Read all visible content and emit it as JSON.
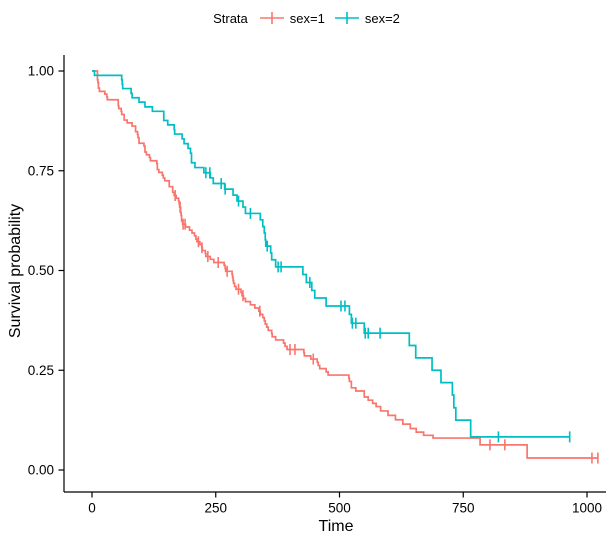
{
  "legend": {
    "title": "Strata",
    "items": [
      {
        "label": "sex=1",
        "color": "#F8766D"
      },
      {
        "label": "sex=2",
        "color": "#00BFC4"
      }
    ]
  },
  "axes": {
    "x": {
      "label": "Time",
      "tick_values": [
        0,
        250,
        500,
        750,
        1000
      ],
      "tick_labels": [
        "0",
        "250",
        "500",
        "750",
        "1000"
      ]
    },
    "y": {
      "label": "Survival probability",
      "tick_values": [
        0,
        0.25,
        0.5,
        0.75,
        1
      ],
      "tick_labels": [
        "0.00",
        "0.25",
        "0.50",
        "0.75",
        "1.00"
      ]
    }
  },
  "chart_data": {
    "type": "line",
    "subtype": "kaplan-meier-step",
    "title": "",
    "xlabel": "Time",
    "ylabel": "Survival probability",
    "xlim": [
      0,
      1040
    ],
    "ylim": [
      0,
      1
    ],
    "grid": false,
    "legend_position": "top",
    "series": [
      {
        "name": "sex=1",
        "color": "#F8766D",
        "end_time": 1022,
        "steps": [
          [
            0,
            1
          ],
          [
            11,
            0.978
          ],
          [
            12,
            0.971
          ],
          [
            13,
            0.957
          ],
          [
            15,
            0.949
          ],
          [
            26,
            0.942
          ],
          [
            30,
            0.935
          ],
          [
            31,
            0.928
          ],
          [
            53,
            0.913
          ],
          [
            54,
            0.906
          ],
          [
            59,
            0.899
          ],
          [
            60,
            0.891
          ],
          [
            65,
            0.877
          ],
          [
            71,
            0.87
          ],
          [
            81,
            0.862
          ],
          [
            88,
            0.848
          ],
          [
            92,
            0.841
          ],
          [
            93,
            0.833
          ],
          [
            95,
            0.819
          ],
          [
            105,
            0.812
          ],
          [
            107,
            0.797
          ],
          [
            110,
            0.79
          ],
          [
            116,
            0.783
          ],
          [
            118,
            0.775
          ],
          [
            131,
            0.768
          ],
          [
            132,
            0.753
          ],
          [
            135,
            0.746
          ],
          [
            142,
            0.739
          ],
          [
            144,
            0.732
          ],
          [
            147,
            0.725
          ],
          [
            156,
            0.71
          ],
          [
            163,
            0.696
          ],
          [
            166,
            0.688
          ],
          [
            170,
            0.681
          ],
          [
            175,
            0.674
          ],
          [
            176,
            0.667
          ],
          [
            177,
            0.659
          ],
          [
            179,
            0.645
          ],
          [
            180,
            0.638
          ],
          [
            181,
            0.624
          ],
          [
            183,
            0.616
          ],
          [
            189,
            0.609
          ],
          [
            197,
            0.601
          ],
          [
            202,
            0.594
          ],
          [
            207,
            0.587
          ],
          [
            210,
            0.579
          ],
          [
            212,
            0.572
          ],
          [
            218,
            0.565
          ],
          [
            222,
            0.557
          ],
          [
            223,
            0.55
          ],
          [
            229,
            0.542
          ],
          [
            230,
            0.535
          ],
          [
            239,
            0.528
          ],
          [
            246,
            0.52
          ],
          [
            267,
            0.513
          ],
          [
            269,
            0.505
          ],
          [
            270,
            0.498
          ],
          [
            283,
            0.49
          ],
          [
            284,
            0.483
          ],
          [
            285,
            0.475
          ],
          [
            286,
            0.468
          ],
          [
            288,
            0.46
          ],
          [
            291,
            0.453
          ],
          [
            301,
            0.445
          ],
          [
            303,
            0.437
          ],
          [
            306,
            0.43
          ],
          [
            310,
            0.422
          ],
          [
            320,
            0.414
          ],
          [
            329,
            0.406
          ],
          [
            337,
            0.398
          ],
          [
            340,
            0.39
          ],
          [
            345,
            0.382
          ],
          [
            348,
            0.374
          ],
          [
            350,
            0.366
          ],
          [
            353,
            0.358
          ],
          [
            356,
            0.35
          ],
          [
            363,
            0.342
          ],
          [
            364,
            0.334
          ],
          [
            371,
            0.326
          ],
          [
            387,
            0.318
          ],
          [
            390,
            0.31
          ],
          [
            394,
            0.302
          ],
          [
            428,
            0.294
          ],
          [
            429,
            0.286
          ],
          [
            442,
            0.278
          ],
          [
            455,
            0.27
          ],
          [
            457,
            0.262
          ],
          [
            460,
            0.254
          ],
          [
            473,
            0.246
          ],
          [
            477,
            0.238
          ],
          [
            519,
            0.23
          ],
          [
            520,
            0.222
          ],
          [
            524,
            0.206
          ],
          [
            533,
            0.198
          ],
          [
            550,
            0.183
          ],
          [
            558,
            0.175
          ],
          [
            567,
            0.167
          ],
          [
            574,
            0.159
          ],
          [
            583,
            0.148
          ],
          [
            598,
            0.137
          ],
          [
            613,
            0.126
          ],
          [
            628,
            0.115
          ],
          [
            643,
            0.104
          ],
          [
            655,
            0.095
          ],
          [
            670,
            0.087
          ],
          [
            689,
            0.08
          ],
          [
            784,
            0.063
          ],
          [
            879,
            0.03
          ]
        ],
        "censor_times": [
          168,
          178,
          184,
          188,
          215,
          222,
          234,
          255,
          273,
          296,
          305,
          339,
          400,
          410,
          447,
          804,
          834,
          1010,
          1022
        ]
      },
      {
        "name": "sex=2",
        "color": "#00BFC4",
        "end_time": 965,
        "steps": [
          [
            0,
            1
          ],
          [
            5,
            0.989
          ],
          [
            60,
            0.978
          ],
          [
            61,
            0.967
          ],
          [
            62,
            0.956
          ],
          [
            79,
            0.944
          ],
          [
            81,
            0.933
          ],
          [
            95,
            0.922
          ],
          [
            107,
            0.91
          ],
          [
            122,
            0.899
          ],
          [
            145,
            0.876
          ],
          [
            153,
            0.865
          ],
          [
            166,
            0.853
          ],
          [
            167,
            0.842
          ],
          [
            182,
            0.83
          ],
          [
            186,
            0.818
          ],
          [
            194,
            0.806
          ],
          [
            199,
            0.794
          ],
          [
            201,
            0.77
          ],
          [
            208,
            0.758
          ],
          [
            226,
            0.745
          ],
          [
            239,
            0.732
          ],
          [
            245,
            0.718
          ],
          [
            268,
            0.704
          ],
          [
            285,
            0.689
          ],
          [
            293,
            0.674
          ],
          [
            305,
            0.659
          ],
          [
            310,
            0.643
          ],
          [
            340,
            0.627
          ],
          [
            345,
            0.61
          ],
          [
            348,
            0.594
          ],
          [
            350,
            0.577
          ],
          [
            351,
            0.561
          ],
          [
            361,
            0.544
          ],
          [
            363,
            0.527
          ],
          [
            371,
            0.509
          ],
          [
            426,
            0.49
          ],
          [
            433,
            0.47
          ],
          [
            444,
            0.45
          ],
          [
            450,
            0.431
          ],
          [
            473,
            0.411
          ],
          [
            520,
            0.39
          ],
          [
            524,
            0.368
          ],
          [
            550,
            0.343
          ],
          [
            641,
            0.312
          ],
          [
            654,
            0.281
          ],
          [
            687,
            0.25
          ],
          [
            705,
            0.219
          ],
          [
            728,
            0.188
          ],
          [
            731,
            0.156
          ],
          [
            735,
            0.125
          ],
          [
            765,
            0.083
          ]
        ],
        "censor_times": [
          230,
          238,
          261,
          269,
          296,
          320,
          354,
          376,
          382,
          440,
          503,
          511,
          526,
          533,
          552,
          558,
          582,
          821,
          965
        ]
      }
    ]
  }
}
